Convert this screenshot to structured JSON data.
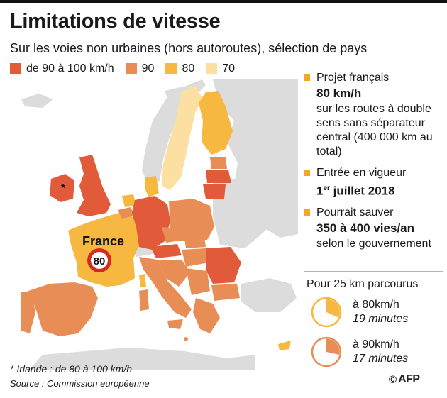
{
  "title": "Limitations de vitesse",
  "subtitle": "Sur les voies non urbaines (hors autoroutes), sélection de pays",
  "colors": {
    "c100": "#e15a3a",
    "c90": "#e98d57",
    "c80": "#f6b840",
    "c70": "#fbe0a2",
    "land_gray": "#dcdcdc",
    "sea": "#ffffff",
    "bullet": "#f5a623"
  },
  "legend": [
    {
      "label": "de 90 à 100 km/h",
      "color": "#e15a3a"
    },
    {
      "label": "90",
      "color": "#e98d57"
    },
    {
      "label": "80",
      "color": "#f6b840"
    },
    {
      "label": "70",
      "color": "#fbe0a2"
    }
  ],
  "map": {
    "france_label": "France",
    "france_sign": "80",
    "ireland_mark": "*"
  },
  "facts": [
    {
      "line1": "Projet français",
      "big": "80 km/h",
      "rest": "sur les routes à double sens sans séparateur central (400 000 km au total)"
    },
    {
      "line1": "Entrée en vigueur",
      "big_sup": "er",
      "big_pre": "1",
      "big_post": " juillet 2018"
    },
    {
      "line1": "Pourrait sauver",
      "big": "350 à 400 vies/an",
      "rest": "selon le gouvernement"
    }
  ],
  "travel": {
    "heading": "Pour 25 km parcourus",
    "rows": [
      {
        "speed": "à 80km/h",
        "time": "19 minutes",
        "fraction": 0.3167
      },
      {
        "speed": "à 90km/h",
        "time": "17 minutes",
        "fraction": 0.2833
      }
    ]
  },
  "footnote": "* Irlande : de 80 à 100 km/h",
  "source": "Source : Commission européenne",
  "credit": {
    "symbol": "©",
    "logo": "AFP"
  }
}
